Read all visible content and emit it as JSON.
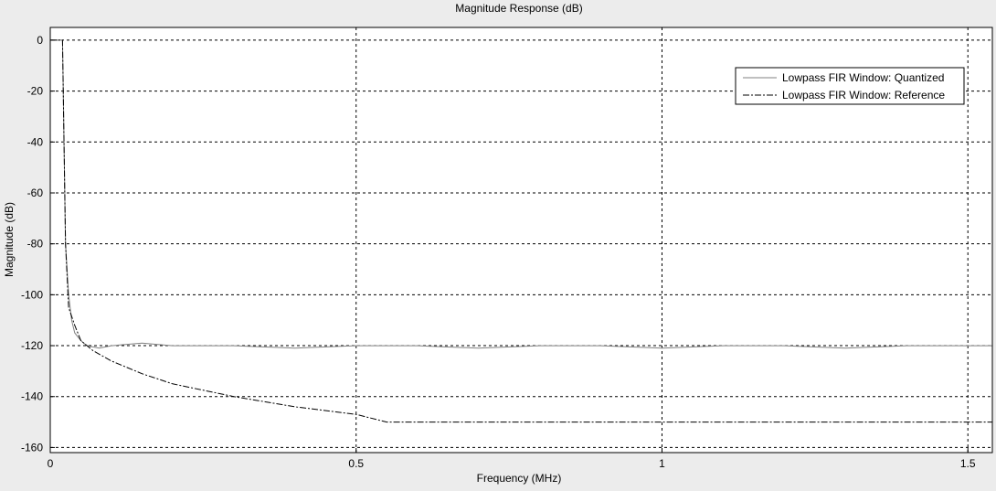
{
  "chart_data": {
    "type": "line",
    "title": "Magnitude Response (dB)",
    "xlabel": "Frequency (MHz)",
    "ylabel": "Magnitude (dB)",
    "xlim": [
      0,
      1.54
    ],
    "ylim": [
      -162,
      5
    ],
    "x_ticks": [
      0,
      0.5,
      1,
      1.5
    ],
    "x_tick_labels": [
      "0",
      "0.5",
      "1",
      "1.5"
    ],
    "y_ticks": [
      0,
      -20,
      -40,
      -60,
      -80,
      -100,
      -120,
      -140,
      -160
    ],
    "y_tick_labels": [
      "0",
      "-20",
      "-40",
      "-60",
      "-80",
      "-100",
      "-120",
      "-140",
      "-160"
    ],
    "grid": true,
    "legend_position": "top-right",
    "series": [
      {
        "name": "Lowpass FIR Window: Quantized",
        "color": "#808080",
        "style": "solid",
        "x": [
          0,
          0.02,
          0.025,
          0.03,
          0.035,
          0.04,
          0.05,
          0.06,
          0.08,
          0.1,
          0.15,
          0.2,
          0.3,
          0.4,
          0.5,
          0.6,
          0.7,
          0.8,
          0.9,
          1.0,
          1.1,
          1.2,
          1.3,
          1.4,
          1.5,
          1.54
        ],
        "y": [
          0,
          0,
          -80,
          -100,
          -110,
          -115,
          -118,
          -120,
          -121,
          -120,
          -119,
          -120,
          -120,
          -121,
          -120,
          -120,
          -121,
          -120,
          -120,
          -121,
          -120,
          -120,
          -121,
          -120,
          -120,
          -120
        ]
      },
      {
        "name": "Lowpass FIR Window: Reference",
        "color": "#000000",
        "style": "dash-dot",
        "x": [
          0,
          0.02,
          0.025,
          0.03,
          0.04,
          0.05,
          0.07,
          0.1,
          0.15,
          0.2,
          0.3,
          0.4,
          0.5,
          0.55,
          0.6,
          0.7,
          0.8,
          0.9,
          1.0,
          1.1,
          1.2,
          1.3,
          1.4,
          1.5,
          1.54
        ],
        "y": [
          0,
          0,
          -80,
          -105,
          -112,
          -118,
          -122,
          -126,
          -131,
          -135,
          -140,
          -144,
          -147,
          -150,
          -150,
          -150,
          -150,
          -150,
          -150,
          -150,
          -150,
          -150,
          -150,
          -150,
          -150
        ]
      }
    ]
  },
  "colors": {
    "figure_background": "#ececec",
    "axes_background": "#ffffff",
    "grid": "#000000"
  }
}
